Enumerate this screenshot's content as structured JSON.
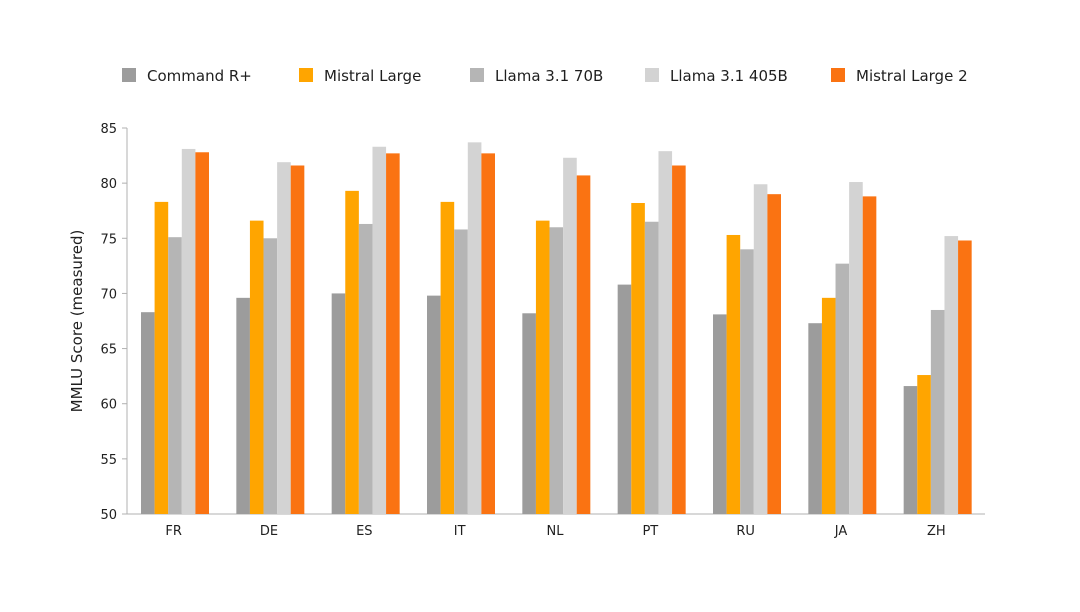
{
  "chart_data": {
    "type": "bar",
    "title": "",
    "xlabel": "",
    "ylabel": "MMLU Score (measured)",
    "ylim": [
      50,
      85
    ],
    "yticks": [
      50,
      55,
      60,
      65,
      70,
      75,
      80,
      85
    ],
    "grid": false,
    "legend_position": "top",
    "categories": [
      "FR",
      "DE",
      "ES",
      "IT",
      "NL",
      "PT",
      "RU",
      "JA",
      "ZH"
    ],
    "series": [
      {
        "name": "Command R+",
        "color": "#9c9c9c",
        "values": [
          68.3,
          69.6,
          70.0,
          69.8,
          68.2,
          70.8,
          68.1,
          67.3,
          61.6
        ]
      },
      {
        "name": "Mistral Large",
        "color": "#ffa500",
        "values": [
          78.3,
          76.6,
          79.3,
          78.3,
          76.6,
          78.2,
          75.3,
          69.6,
          62.6
        ]
      },
      {
        "name": "Llama 3.1 70B",
        "color": "#b5b5b5",
        "values": [
          75.1,
          75.0,
          76.3,
          75.8,
          76.0,
          76.5,
          74.0,
          72.7,
          68.5
        ]
      },
      {
        "name": "Llama 3.1 405B",
        "color": "#d3d3d3",
        "values": [
          83.1,
          81.9,
          83.3,
          83.7,
          82.3,
          82.9,
          79.9,
          80.1,
          75.2
        ]
      },
      {
        "name": "Mistral Large 2",
        "color": "#fa7312",
        "values": [
          82.8,
          81.6,
          82.7,
          82.7,
          80.7,
          81.6,
          79.0,
          78.8,
          74.8
        ]
      }
    ]
  }
}
